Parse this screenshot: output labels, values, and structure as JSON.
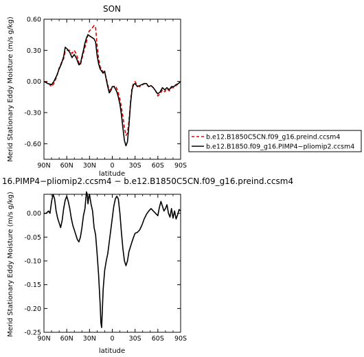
{
  "chart_data": [
    {
      "type": "line",
      "title": "SON",
      "xlabel": "latitude",
      "ylabel": "Merid Stationary Eddy Moisture (m/s g/kg)",
      "xlim": [
        90,
        -90
      ],
      "ylim": [
        -0.75,
        0.6
      ],
      "x_ticks": [
        90,
        60,
        30,
        0,
        -30,
        -60,
        -90
      ],
      "x_tick_labels": [
        "90N",
        "60N",
        "30N",
        "0",
        "30S",
        "60S",
        "90S"
      ],
      "y_ticks": [
        0.6,
        0.3,
        0.0,
        -0.3,
        -0.6
      ],
      "y_tick_labels": [
        "0.60",
        "0.30",
        "0.00",
        "-0.30",
        "-0.60"
      ],
      "legend": {
        "placement": "right"
      },
      "x": [
        90,
        85,
        80,
        77,
        73,
        70,
        67,
        64,
        62,
        59,
        56,
        53,
        50,
        47,
        44,
        42,
        40,
        38,
        36,
        34,
        32,
        30,
        28,
        26,
        24,
        22,
        20,
        18,
        16,
        14,
        12,
        10,
        8,
        6,
        4,
        2,
        0,
        -2,
        -4,
        -6,
        -8,
        -10,
        -12,
        -14,
        -16,
        -18,
        -20,
        -22,
        -24,
        -26,
        -28,
        -30,
        -33,
        -36,
        -39,
        -42,
        -45,
        -48,
        -51,
        -54,
        -57,
        -60,
        -63,
        -66,
        -69,
        -72,
        -75,
        -78,
        -81,
        -84,
        -87,
        -90
      ],
      "series": [
        {
          "name": "b.e12.B1850C5CN.f09_g16.preind.ccsm4",
          "color": "#dd0000",
          "dash": "dashed",
          "values": [
            0.0,
            -0.01,
            -0.05,
            -0.02,
            0.05,
            0.13,
            0.18,
            0.22,
            0.29,
            0.3,
            0.3,
            0.27,
            0.3,
            0.26,
            0.18,
            0.16,
            0.22,
            0.28,
            0.33,
            0.38,
            0.46,
            0.49,
            0.5,
            0.52,
            0.54,
            0.52,
            0.35,
            0.22,
            0.14,
            0.12,
            0.09,
            0.09,
            0.03,
            -0.03,
            -0.09,
            -0.07,
            -0.05,
            -0.05,
            -0.04,
            -0.07,
            -0.11,
            -0.17,
            -0.25,
            -0.34,
            -0.45,
            -0.52,
            -0.5,
            -0.38,
            -0.2,
            -0.06,
            -0.02,
            0.0,
            -0.04,
            -0.05,
            -0.04,
            -0.02,
            -0.03,
            -0.05,
            -0.04,
            -0.06,
            -0.09,
            -0.14,
            -0.12,
            -0.08,
            -0.1,
            -0.07,
            -0.09,
            -0.06,
            -0.06,
            -0.04,
            -0.02,
            0.0
          ]
        },
        {
          "name": "b.e12.B1850.f09_g16.PIMP4−pliomip2.ccsm4",
          "color": "#000000",
          "dash": "solid",
          "values": [
            0.0,
            -0.02,
            -0.03,
            0.0,
            0.06,
            0.12,
            0.17,
            0.24,
            0.33,
            0.31,
            0.28,
            0.23,
            0.26,
            0.22,
            0.16,
            0.17,
            0.24,
            0.3,
            0.37,
            0.42,
            0.45,
            0.44,
            0.43,
            0.42,
            0.41,
            0.38,
            0.25,
            0.17,
            0.12,
            0.1,
            0.08,
            0.1,
            0.02,
            -0.05,
            -0.11,
            -0.09,
            -0.05,
            -0.05,
            -0.07,
            -0.1,
            -0.15,
            -0.22,
            -0.32,
            -0.45,
            -0.57,
            -0.62,
            -0.58,
            -0.42,
            -0.22,
            -0.08,
            -0.03,
            -0.02,
            -0.05,
            -0.04,
            -0.03,
            -0.02,
            -0.02,
            -0.05,
            -0.04,
            -0.06,
            -0.09,
            -0.12,
            -0.1,
            -0.06,
            -0.08,
            -0.06,
            -0.08,
            -0.05,
            -0.05,
            -0.03,
            -0.02,
            0.0
          ]
        }
      ]
    },
    {
      "type": "line",
      "title": "16.PIMP4−pliomip2.ccsm4 − b.e12.B1850C5CN.f09_g16.preind.ccsm4",
      "xlabel": "latitude",
      "ylabel": "Merid Stationary Eddy Moisture (m/s g/kg)",
      "xlim": [
        90,
        -90
      ],
      "ylim": [
        -0.25,
        0.04
      ],
      "x_ticks": [
        90,
        60,
        30,
        0,
        -30,
        -60,
        -90
      ],
      "x_tick_labels": [
        "90N",
        "60N",
        "30N",
        "0",
        "30S",
        "60S",
        "90S"
      ],
      "y_ticks": [
        0.0,
        -0.05,
        -0.1,
        -0.15,
        -0.2,
        -0.25
      ],
      "y_tick_labels": [
        "0.00",
        "-0.05",
        "-0.10",
        "-0.15",
        "-0.20",
        "-0.25"
      ],
      "x": [
        90,
        87,
        84,
        82,
        80,
        78,
        76,
        74,
        72,
        70,
        68,
        66,
        64,
        62,
        60,
        58,
        56,
        54,
        52,
        50,
        48,
        46,
        44,
        42,
        40,
        38,
        36,
        34,
        33,
        32,
        31,
        30,
        28,
        26,
        24,
        22,
        20,
        18,
        16,
        15,
        14,
        13,
        12,
        10,
        8,
        6,
        4,
        2,
        0,
        -2,
        -4,
        -6,
        -8,
        -10,
        -12,
        -14,
        -16,
        -18,
        -20,
        -22,
        -24,
        -26,
        -28,
        -30,
        -33,
        -36,
        -39,
        -42,
        -45,
        -48,
        -51,
        -54,
        -57,
        -60,
        -62,
        -64,
        -66,
        -68,
        -70,
        -72,
        -74,
        -76,
        -78,
        -80,
        -82,
        -84,
        -86,
        -88,
        -90
      ],
      "values": [
        0.0,
        0.0,
        0.005,
        0.0,
        0.025,
        0.04,
        0.03,
        0.005,
        -0.01,
        -0.02,
        -0.03,
        -0.015,
        0.01,
        0.028,
        0.036,
        0.025,
        0.01,
        -0.01,
        -0.025,
        -0.035,
        -0.045,
        -0.055,
        -0.06,
        -0.05,
        -0.03,
        -0.005,
        0.01,
        0.045,
        0.04,
        0.02,
        0.035,
        0.04,
        0.02,
        0.005,
        -0.03,
        -0.045,
        -0.085,
        -0.13,
        -0.19,
        -0.23,
        -0.24,
        -0.2,
        -0.16,
        -0.12,
        -0.1,
        -0.085,
        -0.06,
        -0.035,
        -0.01,
        0.015,
        0.03,
        0.036,
        0.03,
        0.0,
        -0.04,
        -0.075,
        -0.1,
        -0.11,
        -0.1,
        -0.08,
        -0.07,
        -0.06,
        -0.05,
        -0.042,
        -0.04,
        -0.035,
        -0.025,
        -0.012,
        -0.002,
        0.005,
        0.01,
        0.005,
        0.0,
        -0.005,
        0.012,
        0.025,
        0.015,
        0.005,
        0.01,
        0.018,
        0.0,
        -0.008,
        0.01,
        -0.01,
        0.005,
        -0.012,
        -0.003,
        0.008,
        0.005
      ]
    }
  ]
}
